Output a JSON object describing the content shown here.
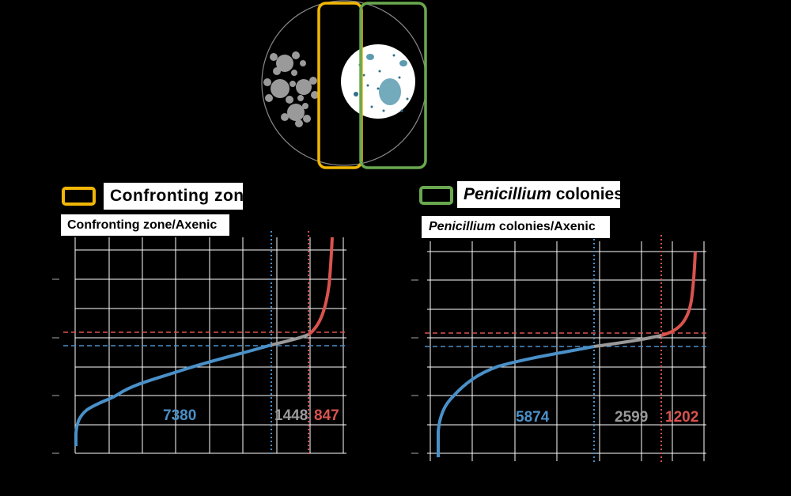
{
  "labels": {
    "panel1_title": "Confronting  zone",
    "panel1_subtitle": "Confronting zone/Axenic",
    "panel2_title_italic": "Penicillium",
    "panel2_title_rest": " colonies",
    "panel2_subtitle_italic": "Penicillium",
    "panel2_subtitle_rest": " colonies/Axenic"
  },
  "colors": {
    "confronting": "#f2b705",
    "penicillium": "#6aa84f",
    "down": "#4a90c8",
    "neutral": "#9a9a9a",
    "up": "#d9534f"
  },
  "chart_data": [
    {
      "type": "line",
      "panel": "Confronting zone/Axenic",
      "series": [
        {
          "values": [
            7380
          ]
        },
        {
          "values": [
            1448
          ]
        },
        {
          "values": [
            847
          ]
        }
      ]
    },
    {
      "type": "line",
      "panel": "Penicillium colonies/Axenic",
      "series": [
        {
          "values": [
            5874
          ]
        },
        {
          "values": [
            2599
          ]
        },
        {
          "values": [
            1202
          ]
        }
      ]
    }
  ],
  "counts": {
    "p1_down": "7380",
    "p1_neutral": "1448",
    "p1_up": "847",
    "p2_down": "5874",
    "p2_neutral": "2599",
    "p2_up": "1202"
  }
}
